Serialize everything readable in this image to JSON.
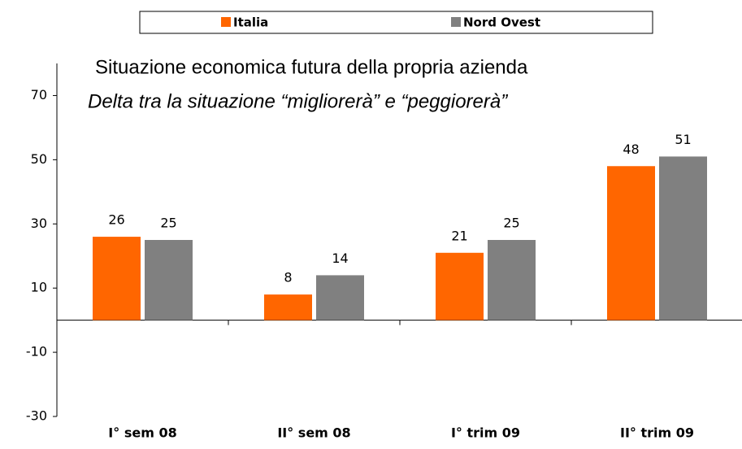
{
  "chart_data": {
    "type": "bar",
    "title": "Situazione economica futura della propria azienda",
    "subtitle": "Delta tra la situazione “migliorerà” e “peggiorerà”",
    "categories": [
      "I° sem 08",
      "II° sem 08",
      "I° trim 09",
      "II° trim 09"
    ],
    "series": [
      {
        "name": "Italia",
        "color": "#ff6600",
        "values": [
          26,
          8,
          21,
          48
        ]
      },
      {
        "name": "Nord Ovest",
        "color": "#808080",
        "values": [
          25,
          14,
          25,
          51
        ]
      }
    ],
    "ylim": [
      -30,
      80
    ],
    "yticks": [
      -30,
      -10,
      10,
      30,
      50,
      70
    ]
  }
}
